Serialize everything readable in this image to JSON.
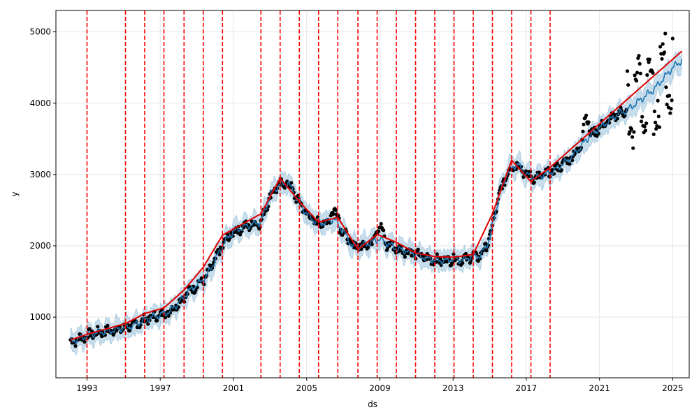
{
  "chart_data": {
    "type": "line",
    "title": "",
    "xlabel": "ds",
    "ylabel": "y",
    "xlim": [
      1991.3,
      2025.9
    ],
    "ylim": [
      150,
      5300
    ],
    "grid": true,
    "x_ticks": [
      1993,
      1997,
      2001,
      2005,
      2009,
      2013,
      2017,
      2021,
      2025
    ],
    "x_tick_labels": [
      "1993",
      "1997",
      "2001",
      "2005",
      "2009",
      "2013",
      "2017",
      "2021",
      "2025"
    ],
    "y_ticks": [
      1000,
      2000,
      3000,
      4000,
      5000
    ],
    "y_tick_labels": [
      "1000",
      "2000",
      "3000",
      "4000",
      "5000"
    ],
    "changepoints": [
      1993.0,
      1995.1,
      1996.15,
      1997.2,
      1998.3,
      1999.35,
      2000.4,
      2002.5,
      2003.55,
      2004.6,
      2005.65,
      2006.7,
      2007.8,
      2008.85,
      2009.9,
      2010.95,
      2012.0,
      2013.05,
      2014.1,
      2015.15,
      2016.2,
      2017.25,
      2018.3
    ],
    "trend": {
      "x": [
        1992.1,
        1993.0,
        1995.1,
        1996.15,
        1997.2,
        1998.3,
        1999.35,
        2000.4,
        2002.5,
        2003.55,
        2004.6,
        2005.65,
        2006.7,
        2007.8,
        2008.85,
        2009.9,
        2010.95,
        2012.0,
        2013.05,
        2014.1,
        2015.15,
        2016.2,
        2017.25,
        2018.3,
        2025.5
      ],
      "y": [
        680,
        760,
        910,
        1050,
        1130,
        1380,
        1700,
        2150,
        2450,
        2950,
        2620,
        2330,
        2400,
        1950,
        2160,
        2050,
        1900,
        1850,
        1840,
        1880,
        2450,
        3200,
        2900,
        3100,
        4730
      ]
    },
    "forecast": {
      "x": [
        1992.1,
        1992.5,
        1993.0,
        1993.5,
        1994.0,
        1994.5,
        1995.0,
        1995.5,
        1996.0,
        1996.5,
        1997.0,
        1997.5,
        1998.0,
        1998.5,
        1999.0,
        1999.5,
        2000.0,
        2000.5,
        2001.0,
        2001.5,
        2002.0,
        2002.5,
        2003.0,
        2003.5,
        2004.0,
        2004.5,
        2005.0,
        2005.5,
        2006.0,
        2006.5,
        2007.0,
        2007.5,
        2008.0,
        2008.5,
        2009.0,
        2009.5,
        2010.0,
        2010.5,
        2011.0,
        2011.5,
        2012.0,
        2012.5,
        2013.0,
        2013.5,
        2014.0,
        2014.5,
        2015.0,
        2015.5,
        2016.0,
        2016.5,
        2017.0,
        2017.5,
        2018.0,
        2018.5,
        2019.0,
        2019.5,
        2020.0,
        2020.5,
        2021.0,
        2021.5,
        2022.0,
        2022.5,
        2023.0,
        2023.5,
        2024.0,
        2024.5,
        2025.0,
        2025.5
      ],
      "y": [
        650,
        690,
        740,
        780,
        800,
        820,
        850,
        880,
        940,
        1000,
        1030,
        1080,
        1200,
        1350,
        1450,
        1560,
        1800,
        2050,
        2200,
        2260,
        2300,
        2330,
        2700,
        2860,
        2880,
        2650,
        2450,
        2330,
        2320,
        2380,
        2200,
        2000,
        2000,
        2050,
        2100,
        2020,
        1950,
        1930,
        1880,
        1830,
        1800,
        1790,
        1820,
        1800,
        1850,
        1860,
        2100,
        2700,
        3050,
        3150,
        3000,
        2950,
        3000,
        3050,
        3150,
        3250,
        3400,
        3550,
        3650,
        3750,
        3850,
        3900,
        4000,
        4100,
        4200,
        4350,
        4500,
        4600
      ]
    },
    "band_halfwidth": 140,
    "observed_color": "#000000",
    "forecast_color": "#1f77b4",
    "band_color": "#1f77b4",
    "trend_color": "#e00000",
    "changepoint_color": "#ff0000",
    "grid_color": "#e6e6e6"
  }
}
